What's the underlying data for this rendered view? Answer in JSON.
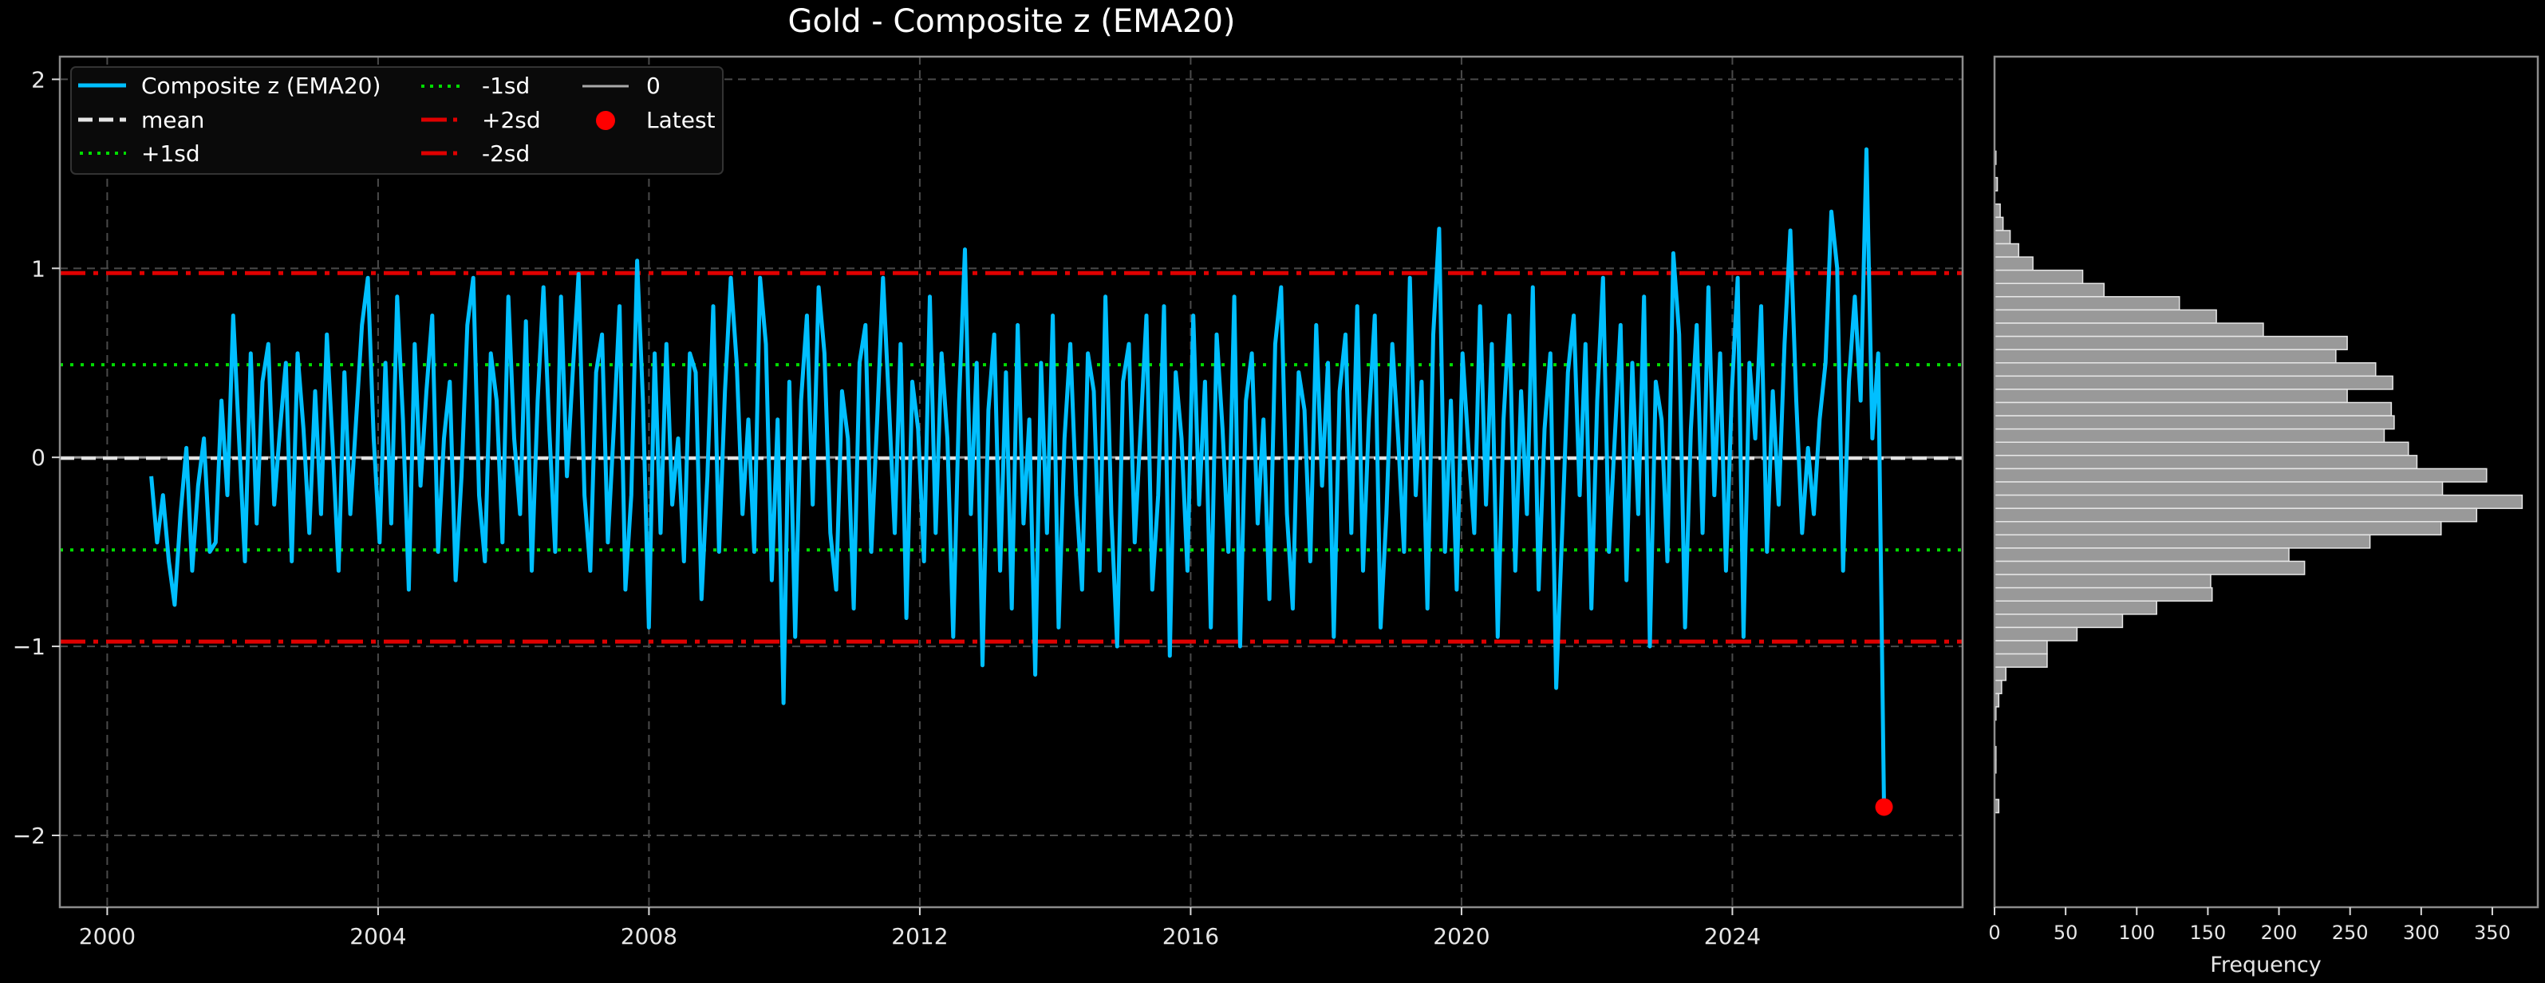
{
  "figure": {
    "title": "Gold - Composite z (EMA20)",
    "background": "#000000"
  },
  "legend": {
    "items": [
      {
        "label": "Composite z (EMA20)",
        "style": "solid",
        "color": "#00BFFF"
      },
      {
        "label": "mean",
        "style": "dashed",
        "color": "#e6e6e6"
      },
      {
        "label": "+1sd",
        "style": "dotted",
        "color": "#00dd00"
      },
      {
        "label": "-1sd",
        "style": "dotted",
        "color": "#00dd00"
      },
      {
        "label": "+2sd",
        "style": "dashdot",
        "color": "#e00000"
      },
      {
        "label": "-2sd",
        "style": "dashdot",
        "color": "#e00000"
      },
      {
        "label": "0",
        "style": "solid",
        "color": "#aaaaaa"
      },
      {
        "label": "Latest",
        "style": "marker",
        "color": "#ff0000"
      }
    ]
  },
  "main_axis": {
    "y_ticks": [
      "2",
      "1",
      "0",
      "−1",
      "−2"
    ],
    "x_ticks": [
      "2000",
      "2004",
      "2008",
      "2012",
      "2016",
      "2020",
      "2024"
    ]
  },
  "hist_axis": {
    "x_ticks": [
      "0",
      "50",
      "100",
      "150",
      "200",
      "250",
      "300",
      "350"
    ],
    "xlabel": "Frequency"
  },
  "chart_data": [
    {
      "type": "line",
      "title": "Gold - Composite z (EMA20)",
      "xlabel": "",
      "ylabel": "",
      "xlim": [
        1999.3,
        2027.4
      ],
      "ylim": [
        -2.38,
        2.12
      ],
      "grid": true,
      "legend_position": "upper left",
      "x_ticks": [
        2000,
        2004,
        2008,
        2012,
        2016,
        2020,
        2024
      ],
      "y_ticks": [
        -2,
        -1,
        0,
        1,
        2
      ],
      "reference_lines": {
        "mean": -0.005,
        "plus_1sd": 0.49,
        "minus_1sd": -0.49,
        "plus_2sd": 0.975,
        "minus_2sd": -0.975,
        "zero": 0
      },
      "series": [
        {
          "name": "Composite z (EMA20)",
          "x_start": 2000.65,
          "x_end": 2026.24,
          "values": [
            -0.1,
            -0.45,
            -0.2,
            -0.55,
            -0.78,
            -0.3,
            0.05,
            -0.6,
            -0.15,
            0.1,
            -0.5,
            -0.45,
            0.3,
            -0.2,
            0.75,
            0.1,
            -0.55,
            0.55,
            -0.35,
            0.4,
            0.6,
            -0.25,
            0.15,
            0.5,
            -0.55,
            0.55,
            0.15,
            -0.4,
            0.35,
            -0.3,
            0.65,
            0.05,
            -0.6,
            0.45,
            -0.3,
            0.2,
            0.7,
            0.95,
            0.1,
            -0.45,
            0.5,
            -0.35,
            0.85,
            0.2,
            -0.7,
            0.6,
            -0.15,
            0.35,
            0.75,
            -0.5,
            0.1,
            0.4,
            -0.65,
            -0.1,
            0.7,
            0.95,
            -0.2,
            -0.55,
            0.55,
            0.3,
            -0.45,
            0.85,
            0.1,
            -0.3,
            0.72,
            -0.6,
            0.3,
            0.9,
            0.15,
            -0.5,
            0.85,
            -0.1,
            0.45,
            0.97,
            -0.2,
            -0.6,
            0.45,
            0.65,
            -0.45,
            0.15,
            0.8,
            -0.7,
            -0.2,
            1.04,
            0.3,
            -0.9,
            0.55,
            -0.4,
            0.6,
            -0.25,
            0.1,
            -0.55,
            0.55,
            0.45,
            -0.75,
            -0.1,
            0.8,
            -0.5,
            0.35,
            0.95,
            0.5,
            -0.3,
            0.2,
            -0.5,
            0.95,
            0.6,
            -0.65,
            0.2,
            -1.3,
            0.4,
            -0.95,
            0.3,
            0.75,
            -0.25,
            0.9,
            0.55,
            -0.4,
            -0.7,
            0.35,
            0.1,
            -0.8,
            0.5,
            0.7,
            -0.5,
            0.2,
            0.95,
            0.3,
            -0.4,
            0.6,
            -0.85,
            0.4,
            0.15,
            -0.55,
            0.85,
            -0.4,
            0.55,
            0.1,
            -0.95,
            0.3,
            1.1,
            -0.3,
            0.5,
            -1.1,
            0.25,
            0.65,
            -0.6,
            0.45,
            -0.8,
            0.7,
            -0.35,
            0.2,
            -1.15,
            0.5,
            -0.4,
            0.75,
            -0.9,
            0.1,
            0.6,
            -0.2,
            -0.7,
            0.55,
            0.35,
            -0.6,
            0.85,
            -0.3,
            -1.0,
            0.4,
            0.6,
            -0.45,
            0.15,
            0.75,
            -0.7,
            -0.2,
            0.8,
            -1.05,
            0.45,
            0.1,
            -0.6,
            0.75,
            -0.25,
            0.4,
            -0.9,
            0.65,
            0.15,
            -0.5,
            0.85,
            -1.0,
            0.3,
            0.55,
            -0.35,
            0.2,
            -0.75,
            0.6,
            0.9,
            -0.3,
            -0.8,
            0.45,
            0.25,
            -0.55,
            0.7,
            -0.15,
            0.5,
            -0.95,
            0.35,
            0.65,
            -0.4,
            0.8,
            -0.6,
            0.2,
            0.75,
            -0.9,
            -0.3,
            0.6,
            0.1,
            -0.5,
            0.95,
            -0.2,
            0.4,
            -0.8,
            0.65,
            1.21,
            -0.5,
            0.3,
            -0.7,
            0.55,
            0.05,
            -0.4,
            0.8,
            -0.25,
            0.6,
            -0.95,
            0.2,
            0.75,
            -0.6,
            0.35,
            -0.3,
            0.9,
            -0.7,
            0.15,
            0.55,
            -1.22,
            -0.4,
            0.45,
            0.75,
            -0.2,
            0.6,
            -0.8,
            0.3,
            0.95,
            -0.5,
            0.1,
            0.7,
            -0.65,
            0.5,
            -0.3,
            0.85,
            -1.0,
            0.4,
            0.2,
            -0.55,
            1.08,
            0.65,
            -0.9,
            0.15,
            0.7,
            -0.4,
            0.9,
            -0.2,
            0.55,
            -0.6,
            0.35,
            0.95,
            -0.95,
            0.5,
            0.1,
            0.8,
            -0.5,
            0.35,
            -0.25,
            0.6,
            1.2,
            0.3,
            -0.4,
            0.05,
            -0.3,
            0.2,
            0.5,
            1.3,
            1.0,
            -0.6,
            0.4,
            0.85,
            0.3,
            1.63,
            0.1,
            0.55,
            -1.85
          ]
        },
        {
          "name": "Latest",
          "x": 2026.24,
          "y": -1.85
        }
      ]
    },
    {
      "type": "bar",
      "orientation": "horizontal",
      "title": "",
      "xlabel": "Frequency",
      "ylabel": "",
      "xlim": [
        0,
        382
      ],
      "ylim": [
        -2.38,
        2.12
      ],
      "x_ticks": [
        0,
        50,
        100,
        150,
        200,
        250,
        300,
        350
      ],
      "bin_width": 0.07,
      "bins_top_to_bottom": [
        {
          "z": 1.585,
          "count": 1
        },
        {
          "z": 1.515,
          "count": 0
        },
        {
          "z": 1.445,
          "count": 2
        },
        {
          "z": 1.375,
          "count": 0
        },
        {
          "z": 1.305,
          "count": 4
        },
        {
          "z": 1.235,
          "count": 6
        },
        {
          "z": 1.165,
          "count": 11
        },
        {
          "z": 1.095,
          "count": 17
        },
        {
          "z": 1.025,
          "count": 27
        },
        {
          "z": 0.955,
          "count": 62
        },
        {
          "z": 0.885,
          "count": 77
        },
        {
          "z": 0.815,
          "count": 130
        },
        {
          "z": 0.745,
          "count": 156
        },
        {
          "z": 0.675,
          "count": 189
        },
        {
          "z": 0.605,
          "count": 248
        },
        {
          "z": 0.535,
          "count": 240
        },
        {
          "z": 0.465,
          "count": 268
        },
        {
          "z": 0.395,
          "count": 280
        },
        {
          "z": 0.325,
          "count": 248
        },
        {
          "z": 0.255,
          "count": 279
        },
        {
          "z": 0.185,
          "count": 281
        },
        {
          "z": 0.115,
          "count": 274
        },
        {
          "z": 0.045,
          "count": 291
        },
        {
          "z": -0.025,
          "count": 297
        },
        {
          "z": -0.095,
          "count": 346
        },
        {
          "z": -0.165,
          "count": 315
        },
        {
          "z": -0.235,
          "count": 371
        },
        {
          "z": -0.305,
          "count": 339
        },
        {
          "z": -0.375,
          "count": 314
        },
        {
          "z": -0.445,
          "count": 264
        },
        {
          "z": -0.515,
          "count": 207
        },
        {
          "z": -0.585,
          "count": 218
        },
        {
          "z": -0.655,
          "count": 152
        },
        {
          "z": -0.725,
          "count": 153
        },
        {
          "z": -0.795,
          "count": 114
        },
        {
          "z": -0.865,
          "count": 90
        },
        {
          "z": -0.935,
          "count": 58
        },
        {
          "z": -1.005,
          "count": 37
        },
        {
          "z": -1.075,
          "count": 37
        },
        {
          "z": -1.145,
          "count": 8
        },
        {
          "z": -1.215,
          "count": 5
        },
        {
          "z": -1.285,
          "count": 3
        },
        {
          "z": -1.355,
          "count": 1
        },
        {
          "z": -1.425,
          "count": 0
        },
        {
          "z": -1.495,
          "count": 0
        },
        {
          "z": -1.565,
          "count": 1
        },
        {
          "z": -1.635,
          "count": 1
        },
        {
          "z": -1.705,
          "count": 0
        },
        {
          "z": -1.775,
          "count": 0
        },
        {
          "z": -1.845,
          "count": 3
        }
      ]
    }
  ]
}
